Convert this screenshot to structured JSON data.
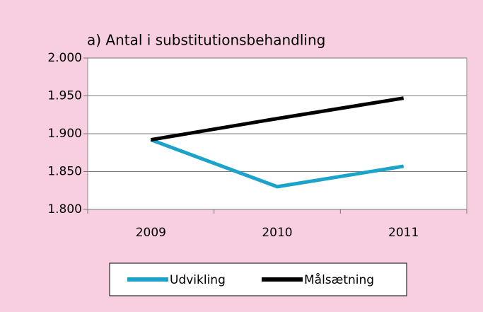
{
  "chart_data": {
    "type": "line",
    "title": "a) Antal i substitutionsbehandling",
    "categories": [
      "2009",
      "2010",
      "2011"
    ],
    "series": [
      {
        "name": "Udvikling",
        "color": "#1ba3c9",
        "values": [
          1892,
          1830,
          1857
        ]
      },
      {
        "name": "Målsætning",
        "color": "#000000",
        "values": [
          1892,
          1920,
          1947
        ]
      }
    ],
    "ylim": [
      1800,
      2000
    ],
    "yticks": [
      {
        "value": 1800,
        "label": "1.800"
      },
      {
        "value": 1850,
        "label": "1.850"
      },
      {
        "value": 1900,
        "label": "1.900"
      },
      {
        "value": 1950,
        "label": "1.950"
      },
      {
        "value": 2000,
        "label": "2.000"
      }
    ],
    "grid": true,
    "legend": "bottom"
  }
}
